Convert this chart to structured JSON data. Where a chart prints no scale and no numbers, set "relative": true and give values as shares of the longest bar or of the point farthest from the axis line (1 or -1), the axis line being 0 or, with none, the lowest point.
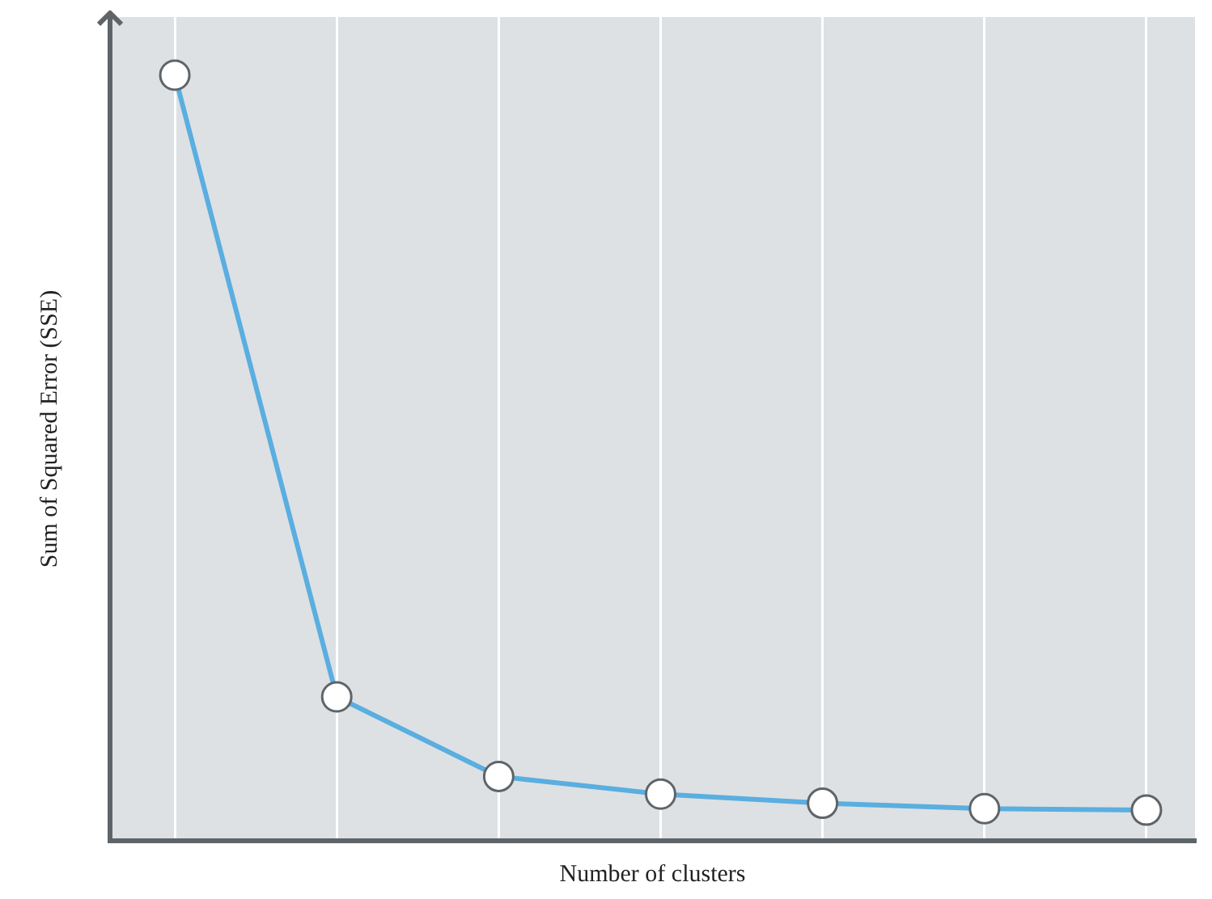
{
  "chart_data": {
    "type": "line",
    "relative": true,
    "xlabel": "Number of clusters",
    "ylabel": "Sum of Squared Error (SSE)",
    "categories": [
      null,
      null,
      null,
      null,
      null,
      null,
      null
    ],
    "series": [
      {
        "color": "#5aaee0",
        "values": [
          1,
          0.188,
          0.084,
          0.061,
          0.049,
          0.042,
          0.04
        ]
      }
    ],
    "marker": "circle",
    "grid": "x",
    "tick_labels": false,
    "legend": false
  }
}
